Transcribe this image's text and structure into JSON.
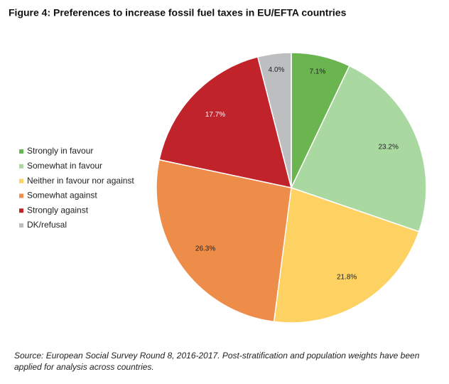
{
  "chart_data": {
    "type": "pie",
    "title": "Figure 4: Preferences to increase fossil fuel taxes in EU/EFTA countries",
    "categories": [
      "Strongly in favour",
      "Somewhat in favour",
      "Neither in favour nor against",
      "Somewhat against",
      "Strongly against",
      "DK/refusal"
    ],
    "values": [
      7.1,
      23.2,
      21.8,
      26.3,
      17.7,
      4.0
    ],
    "value_labels": [
      "7.1%",
      "23.2%",
      "21.8%",
      "26.3%",
      "17.7%",
      "4.0%"
    ],
    "colors": [
      "#6ab550",
      "#a9d9a0",
      "#fed262",
      "#ee8c4a",
      "#c1232b",
      "#bdbec0"
    ],
    "legend": "left",
    "note": "Source: European Social Survey Round 8, 2016-2017. Post-stratification and population weights have been applied for analysis across countries."
  }
}
